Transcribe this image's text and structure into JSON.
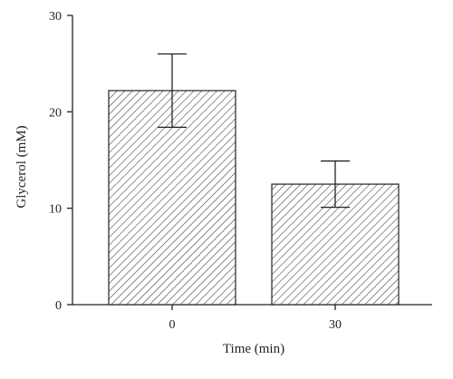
{
  "chart_data": {
    "type": "bar",
    "title": "",
    "xlabel": "Time (min)",
    "ylabel": "Glycerol (mM)",
    "categories": [
      "0",
      "30"
    ],
    "values": [
      22.2,
      12.5
    ],
    "errors": [
      3.8,
      2.4
    ],
    "ylim": [
      0,
      30
    ],
    "yticks": [
      "0",
      "10",
      "20",
      "30"
    ],
    "grid": false,
    "legend": "none",
    "bar_fill": "diagonal hatch",
    "colors": {
      "bar_stroke": "#222222",
      "hatch": "#333333",
      "axis": "#222222",
      "background": "#ffffff"
    }
  }
}
